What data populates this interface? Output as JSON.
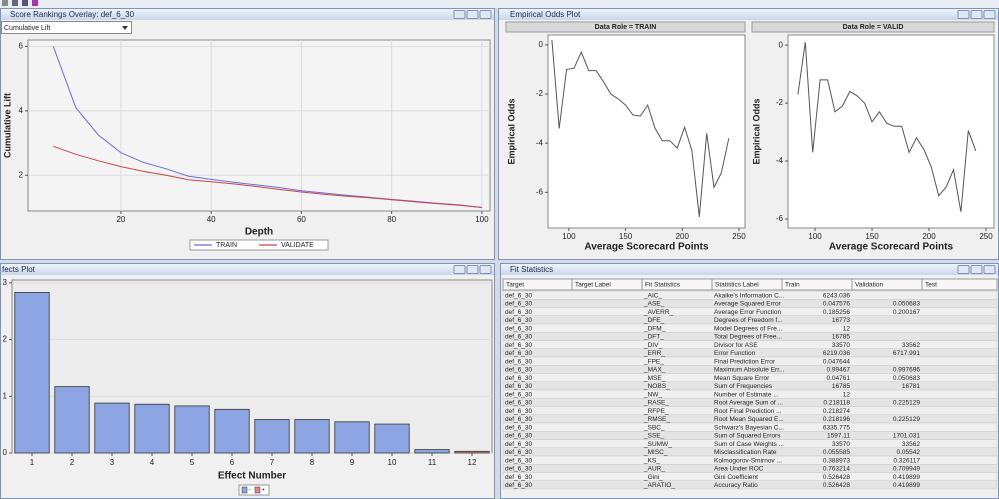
{
  "windows": {
    "score_rankings": {
      "title": "Score Rankings Overlay: def_6_30",
      "selector": "Cumulative Lift"
    },
    "empirical_odds": {
      "title": "Empirical Odds Plot"
    },
    "effects": {
      "title": "fects Plot"
    },
    "fit_statistics": {
      "title": "Fit Statistics"
    }
  },
  "chart_data": [
    {
      "type": "line",
      "x": [
        5,
        10,
        15,
        20,
        25,
        30,
        35,
        40,
        45,
        50,
        55,
        60,
        65,
        70,
        75,
        80,
        85,
        90,
        95,
        100
      ],
      "series": [
        {
          "name": "TRAIN",
          "color": "#6b6be0",
          "values": [
            6.0,
            4.1,
            3.25,
            2.7,
            2.4,
            2.2,
            1.97,
            1.87,
            1.78,
            1.7,
            1.62,
            1.52,
            1.45,
            1.38,
            1.32,
            1.25,
            1.19,
            1.13,
            1.08,
            1.0
          ]
        },
        {
          "name": "VALIDATE",
          "color": "#cc4444",
          "values": [
            2.9,
            2.65,
            2.45,
            2.27,
            2.12,
            2.0,
            1.86,
            1.8,
            1.73,
            1.65,
            1.56,
            1.48,
            1.41,
            1.35,
            1.3,
            1.24,
            1.18,
            1.12,
            1.07,
            1.0
          ]
        }
      ],
      "xlim": [
        -0.6,
        101.8
      ],
      "ylim": [
        0.89,
        6.2
      ],
      "xticks": [
        20,
        40,
        60,
        80,
        100
      ],
      "yticks": [
        2,
        4,
        6
      ],
      "xlabel": "Depth",
      "ylabel": "Cumulative Lift",
      "grid": true,
      "legend": "bottom"
    },
    {
      "type": "line",
      "title": "Data Role = TRAIN",
      "x": [
        85,
        91.5,
        98,
        104.5,
        111,
        117.5,
        124,
        130.5,
        137,
        143.5,
        150,
        156.5,
        163,
        169.5,
        176,
        182.5,
        189,
        195.5,
        202,
        208.5,
        215,
        221.5,
        228,
        234.5,
        241
      ],
      "values": [
        0.2,
        -3.4,
        -1.0,
        -0.95,
        -0.3,
        -1.05,
        -1.05,
        -1.5,
        -2.0,
        -2.2,
        -2.45,
        -2.85,
        -2.9,
        -2.45,
        -3.4,
        -3.9,
        -3.9,
        -4.2,
        -3.35,
        -4.3,
        -7.0,
        -3.6,
        -5.8,
        -5.2,
        -3.8
      ],
      "color": "#555555",
      "xlim": [
        81.6,
        255.3
      ],
      "ylim": [
        -7.45,
        0.4
      ],
      "xticks": [
        100,
        150,
        200,
        250
      ],
      "yticks": [
        0,
        -2,
        -4,
        -6
      ],
      "xlabel": "Average Scorecard Points",
      "ylabel": "Empirical Odds",
      "grid": false
    },
    {
      "type": "line",
      "title": "Data Role = VALID",
      "x": [
        85,
        91.5,
        98,
        104.5,
        111,
        117.5,
        124,
        130.5,
        137,
        143.5,
        150,
        156.5,
        163,
        169.5,
        176,
        182.5,
        189,
        195.5,
        202,
        208.5,
        215,
        221.5,
        228,
        234.5,
        241
      ],
      "values": [
        -1.7,
        0.1,
        -3.7,
        -1.2,
        -1.2,
        -2.3,
        -2.1,
        -1.6,
        -1.75,
        -2.0,
        -2.65,
        -2.3,
        -2.7,
        -2.8,
        -2.8,
        -3.7,
        -3.2,
        -3.6,
        -4.2,
        -5.2,
        -4.9,
        -4.3,
        -5.75,
        -2.95,
        -3.65
      ],
      "color": "#555555",
      "xlim": [
        76.3,
        257
      ],
      "ylim": [
        -6.31,
        0.35
      ],
      "xticks": [
        100,
        150,
        200,
        250
      ],
      "yticks": [
        0,
        -2,
        -4,
        -6
      ],
      "xlabel": "Average Scorecard Points",
      "ylabel": "Empirical Odds",
      "grid": false
    },
    {
      "type": "bar",
      "categories": [
        "1",
        "2",
        "3",
        "4",
        "5",
        "6",
        "7",
        "8",
        "9",
        "10",
        "11",
        "12"
      ],
      "values": [
        2.83,
        1.17,
        0.88,
        0.86,
        0.83,
        0.77,
        0.59,
        0.59,
        0.55,
        0.51,
        0.06,
        0.03
      ],
      "colors": [
        "#8da6e3",
        "#8da6e3",
        "#8da6e3",
        "#8da6e3",
        "#8da6e3",
        "#8da6e3",
        "#8da6e3",
        "#8da6e3",
        "#8da6e3",
        "#8da6e3",
        "#8da6e3",
        "#d98a8a"
      ],
      "ylim": [
        0,
        3.05
      ],
      "yticks": [
        0,
        1,
        2,
        3
      ],
      "xlabel": "Effect Number",
      "grid": true,
      "legend": [
        {
          "name": "-",
          "color": "#8da6e3"
        },
        {
          "name": "+",
          "color": "#d98a8a"
        }
      ]
    }
  ],
  "fit_statistics": {
    "columns": [
      "Target",
      "Target Label",
      "Fit Statistics",
      "Statistics Label",
      "Train",
      "Validation",
      "Test"
    ],
    "rows": [
      {
        "target": "def_6_30",
        "statistic": "_AIC_",
        "label": "Akaike's Information C...",
        "train": "6243.036"
      },
      {
        "target": "def_6_30",
        "statistic": "_ASE_",
        "label": "Average Squared Error",
        "train": "0.047576",
        "validation": "0.050683"
      },
      {
        "target": "def_6_30",
        "statistic": "_AVERR_",
        "label": "Average Error Function",
        "train": "0.185256",
        "validation": "0.200167"
      },
      {
        "target": "def_6_30",
        "statistic": "_DFE_",
        "label": "Degrees of Freedom f...",
        "train": "16773"
      },
      {
        "target": "def_6_30",
        "statistic": "_DFM_",
        "label": "Model Degrees of Fre...",
        "train": "12"
      },
      {
        "target": "def_6_30",
        "statistic": "_DFT_",
        "label": "Total Degrees of Free...",
        "train": "16785"
      },
      {
        "target": "def_6_30",
        "statistic": "_DIV_",
        "label": "Divisor for ASE",
        "train": "33570",
        "validation": "33562"
      },
      {
        "target": "def_6_30",
        "statistic": "_ERR_",
        "label": "Error Function",
        "train": "6219.036",
        "validation": "6717.991"
      },
      {
        "target": "def_6_30",
        "statistic": "_FPE_",
        "label": "Final Prediction Error",
        "train": "0.047644"
      },
      {
        "target": "def_6_30",
        "statistic": "_MAX_",
        "label": "Maximum Absolute Err...",
        "train": "0.99467",
        "validation": "0.997696"
      },
      {
        "target": "def_6_30",
        "statistic": "_MSE_",
        "label": "Mean Square Error",
        "train": "0.04761",
        "validation": "0.050683"
      },
      {
        "target": "def_6_30",
        "statistic": "_NOBS_",
        "label": "Sum of Frequencies",
        "train": "16785",
        "validation": "16781"
      },
      {
        "target": "def_6_30",
        "statistic": "_NW_",
        "label": "Number of Estimate ...",
        "train": "12"
      },
      {
        "target": "def_6_30",
        "statistic": "_RASE_",
        "label": "Root Average Sum of ...",
        "train": "0.218118",
        "validation": "0.225129"
      },
      {
        "target": "def_6_30",
        "statistic": "_RFPE_",
        "label": "Root Final Prediction ...",
        "train": "0.218274"
      },
      {
        "target": "def_6_30",
        "statistic": "_RMSE_",
        "label": "Root Mean Squared E...",
        "train": "0.218196",
        "validation": "0.225129"
      },
      {
        "target": "def_6_30",
        "statistic": "_SBC_",
        "label": "Schwarz's Bayesian C...",
        "train": "6335.775"
      },
      {
        "target": "def_6_30",
        "statistic": "_SSE_",
        "label": "Sum of Squared Errors",
        "train": "1597.11",
        "validation": "1701.031"
      },
      {
        "target": "def_6_30",
        "statistic": "_SUMW_",
        "label": "Sum of Case Weights ...",
        "train": "33570",
        "validation": "33562"
      },
      {
        "target": "def_6_30",
        "statistic": "_MISC_",
        "label": "Misclassification Rate",
        "train": "0.055585",
        "validation": "0.05542"
      },
      {
        "target": "def_6_30",
        "statistic": "_KS_",
        "label": "Kolmogorov-Smirnov ...",
        "train": "0.388973",
        "validation": "0.326117"
      },
      {
        "target": "def_6_30",
        "statistic": "_AUR_",
        "label": "Area Under ROC",
        "train": "0.763214",
        "validation": "0.709949"
      },
      {
        "target": "def_6_30",
        "statistic": "_Gini_",
        "label": "Gini Coefficient",
        "train": "0.526428",
        "validation": "0.419899"
      },
      {
        "target": "def_6_30",
        "statistic": "_ARATIO_",
        "label": "Accuracy Ratio",
        "train": "0.526428",
        "validation": "0.419899"
      }
    ]
  }
}
